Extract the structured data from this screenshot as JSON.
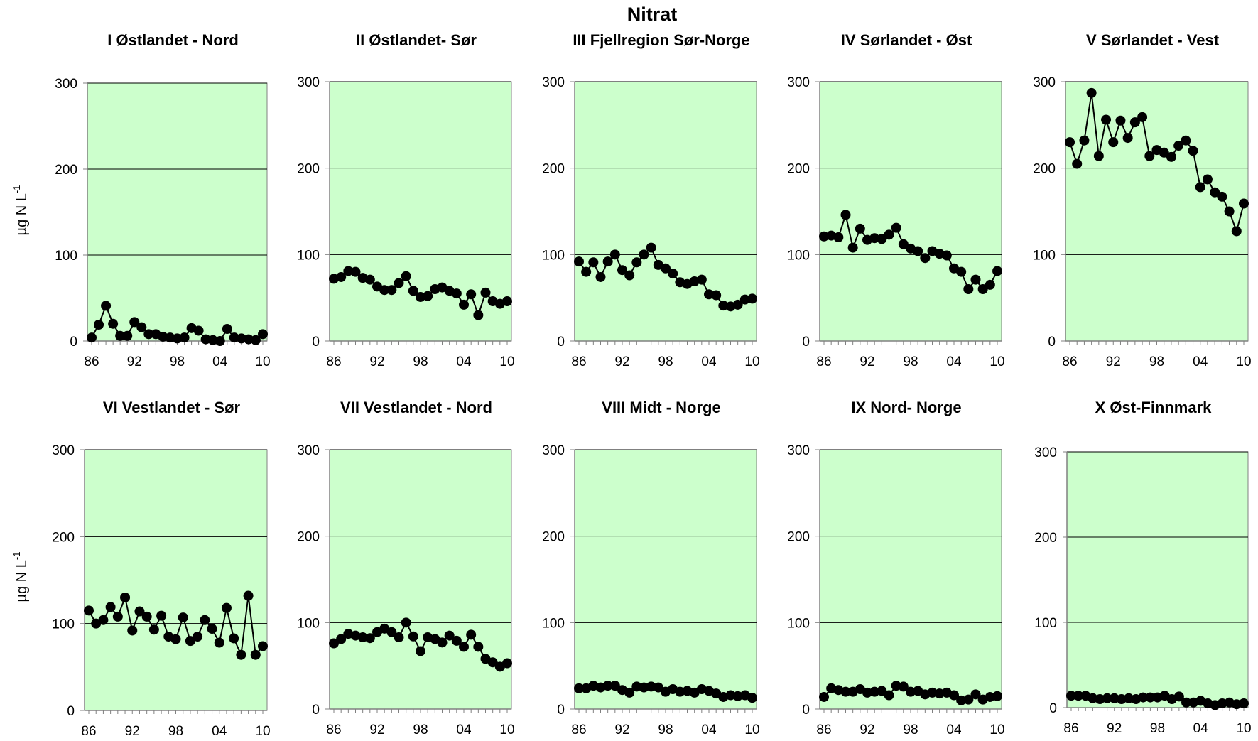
{
  "figure": {
    "title": "Nitrat",
    "ylabel": "µg N L",
    "ylabel_sup": "-1"
  },
  "chart_data": [
    {
      "type": "line",
      "title": "I Østlandet - Nord",
      "x": [
        1986,
        1987,
        1988,
        1989,
        1990,
        1991,
        1992,
        1993,
        1994,
        1995,
        1996,
        1997,
        1998,
        1999,
        2000,
        2001,
        2002,
        2003,
        2004,
        2005,
        2006,
        2007,
        2008,
        2009,
        2010
      ],
      "values": [
        4,
        19,
        41,
        20,
        6,
        6,
        22,
        16,
        8,
        8,
        5,
        4,
        3,
        4,
        15,
        12,
        2,
        1,
        0,
        14,
        4,
        3,
        2,
        1,
        8
      ],
      "x_ticks": [
        "86",
        "92",
        "98",
        "04",
        "10"
      ],
      "y_ticks": [
        "0",
        "100",
        "200",
        "300"
      ],
      "ylim": [
        0,
        300
      ],
      "grid": true
    },
    {
      "type": "line",
      "title": "II Østlandet- Sør",
      "x": [
        1986,
        1987,
        1988,
        1989,
        1990,
        1991,
        1992,
        1993,
        1994,
        1995,
        1996,
        1997,
        1998,
        1999,
        2000,
        2001,
        2002,
        2003,
        2004,
        2005,
        2006,
        2007,
        2008,
        2009,
        2010
      ],
      "values": [
        72,
        74,
        81,
        80,
        73,
        71,
        63,
        59,
        59,
        67,
        75,
        58,
        51,
        52,
        60,
        62,
        58,
        55,
        42,
        54,
        30,
        56,
        46,
        43,
        46
      ],
      "x_ticks": [
        "86",
        "92",
        "98",
        "04",
        "10"
      ],
      "y_ticks": [
        "0",
        "100",
        "200",
        "300"
      ],
      "ylim": [
        0,
        300
      ],
      "grid": true
    },
    {
      "type": "line",
      "title": "III Fjellregion Sør-Norge",
      "x": [
        1986,
        1987,
        1988,
        1989,
        1990,
        1991,
        1992,
        1993,
        1994,
        1995,
        1996,
        1997,
        1998,
        1999,
        2000,
        2001,
        2002,
        2003,
        2004,
        2005,
        2006,
        2007,
        2008,
        2009,
        2010
      ],
      "values": [
        92,
        80,
        91,
        74,
        92,
        100,
        82,
        76,
        91,
        100,
        108,
        88,
        84,
        78,
        68,
        66,
        69,
        71,
        54,
        53,
        41,
        40,
        42,
        48,
        49
      ],
      "x_ticks": [
        "86",
        "92",
        "98",
        "04",
        "10"
      ],
      "y_ticks": [
        "0",
        "100",
        "200",
        "300"
      ],
      "ylim": [
        0,
        300
      ],
      "grid": true
    },
    {
      "type": "line",
      "title": "IV Sørlandet - Øst",
      "x": [
        1986,
        1987,
        1988,
        1989,
        1990,
        1991,
        1992,
        1993,
        1994,
        1995,
        1996,
        1997,
        1998,
        1999,
        2000,
        2001,
        2002,
        2003,
        2004,
        2005,
        2006,
        2007,
        2008,
        2009,
        2010
      ],
      "values": [
        121,
        122,
        120,
        146,
        108,
        130,
        117,
        119,
        118,
        123,
        131,
        112,
        107,
        104,
        96,
        104,
        101,
        99,
        84,
        80,
        60,
        71,
        60,
        65,
        81
      ],
      "x_ticks": [
        "86",
        "92",
        "98",
        "04",
        "10"
      ],
      "y_ticks": [
        "0",
        "100",
        "200",
        "300"
      ],
      "ylim": [
        0,
        300
      ],
      "grid": true
    },
    {
      "type": "line",
      "title": "V Sørlandet - Vest",
      "x": [
        1986,
        1987,
        1988,
        1989,
        1990,
        1991,
        1992,
        1993,
        1994,
        1995,
        1996,
        1997,
        1998,
        1999,
        2000,
        2001,
        2002,
        2003,
        2004,
        2005,
        2006,
        2007,
        2008,
        2009,
        2010
      ],
      "values": [
        230,
        205,
        232,
        287,
        214,
        256,
        230,
        255,
        235,
        253,
        259,
        214,
        221,
        218,
        213,
        226,
        232,
        220,
        178,
        187,
        172,
        167,
        150,
        127,
        159
      ],
      "x_ticks": [
        "86",
        "92",
        "98",
        "04",
        "10"
      ],
      "y_ticks": [
        "0",
        "100",
        "200",
        "300"
      ],
      "ylim": [
        0,
        300
      ],
      "grid": true
    },
    {
      "type": "line",
      "title": "VI Vestlandet - Sør",
      "x": [
        1986,
        1987,
        1988,
        1989,
        1990,
        1991,
        1992,
        1993,
        1994,
        1995,
        1996,
        1997,
        1998,
        1999,
        2000,
        2001,
        2002,
        2003,
        2004,
        2005,
        2006,
        2007,
        2008,
        2009,
        2010
      ],
      "values": [
        115,
        100,
        104,
        119,
        108,
        130,
        92,
        114,
        108,
        93,
        109,
        85,
        82,
        107,
        80,
        85,
        104,
        94,
        78,
        118,
        83,
        64,
        132,
        64,
        74
      ],
      "x_ticks": [
        "86",
        "92",
        "98",
        "04",
        "10"
      ],
      "y_ticks": [
        "0",
        "100",
        "200",
        "300"
      ],
      "ylim": [
        0,
        300
      ],
      "grid": true
    },
    {
      "type": "line",
      "title": "VII Vestlandet - Nord",
      "x": [
        1986,
        1987,
        1988,
        1989,
        1990,
        1991,
        1992,
        1993,
        1994,
        1995,
        1996,
        1997,
        1998,
        1999,
        2000,
        2001,
        2002,
        2003,
        2004,
        2005,
        2006,
        2007,
        2008,
        2009,
        2010
      ],
      "values": [
        76,
        81,
        87,
        85,
        83,
        82,
        89,
        93,
        89,
        83,
        100,
        84,
        67,
        83,
        81,
        77,
        85,
        79,
        72,
        86,
        72,
        58,
        54,
        49,
        53
      ],
      "x_ticks": [
        "86",
        "92",
        "98",
        "04",
        "10"
      ],
      "y_ticks": [
        "0",
        "100",
        "200",
        "300"
      ],
      "ylim": [
        0,
        300
      ],
      "grid": true
    },
    {
      "type": "line",
      "title": "VIII Midt - Norge",
      "x": [
        1986,
        1987,
        1988,
        1989,
        1990,
        1991,
        1992,
        1993,
        1994,
        1995,
        1996,
        1997,
        1998,
        1999,
        2000,
        2001,
        2002,
        2003,
        2004,
        2005,
        2006,
        2007,
        2008,
        2009,
        2010
      ],
      "values": [
        24,
        24,
        27,
        25,
        27,
        27,
        22,
        19,
        26,
        25,
        26,
        25,
        20,
        23,
        20,
        21,
        19,
        23,
        21,
        18,
        14,
        16,
        15,
        16,
        13
      ],
      "x_ticks": [
        "86",
        "92",
        "98",
        "04",
        "10"
      ],
      "y_ticks": [
        "0",
        "100",
        "200",
        "300"
      ],
      "ylim": [
        0,
        300
      ],
      "grid": true
    },
    {
      "type": "line",
      "title": "IX Nord- Norge",
      "x": [
        1986,
        1987,
        1988,
        1989,
        1990,
        1991,
        1992,
        1993,
        1994,
        1995,
        1996,
        1997,
        1998,
        1999,
        2000,
        2001,
        2002,
        2003,
        2004,
        2005,
        2006,
        2007,
        2008,
        2009,
        2010
      ],
      "values": [
        14,
        24,
        22,
        20,
        20,
        23,
        19,
        20,
        21,
        16,
        27,
        26,
        20,
        21,
        17,
        19,
        18,
        19,
        16,
        10,
        11,
        17,
        11,
        14,
        15
      ],
      "x_ticks": [
        "86",
        "92",
        "98",
        "04",
        "10"
      ],
      "y_ticks": [
        "0",
        "100",
        "200",
        "300"
      ],
      "ylim": [
        0,
        300
      ],
      "grid": true
    },
    {
      "type": "line",
      "title": "X Øst-Finnmark",
      "x": [
        1986,
        1987,
        1988,
        1989,
        1990,
        1991,
        1992,
        1993,
        1994,
        1995,
        1996,
        1997,
        1998,
        1999,
        2000,
        2001,
        2002,
        2003,
        2004,
        2005,
        2006,
        2007,
        2008,
        2009,
        2010
      ],
      "values": [
        14,
        14,
        14,
        11,
        10,
        11,
        11,
        10,
        11,
        10,
        12,
        12,
        12,
        14,
        10,
        13,
        6,
        6,
        8,
        5,
        3,
        5,
        6,
        4,
        5
      ],
      "x_ticks": [
        "86",
        "92",
        "98",
        "04",
        "10"
      ],
      "y_ticks": [
        "0",
        "100",
        "200",
        "300"
      ],
      "ylim": [
        0,
        300
      ],
      "grid": true
    }
  ],
  "colors": {
    "plot_background": "#ccffcc",
    "series": "#000000",
    "gridline": "#000000",
    "axis": "#808080"
  }
}
